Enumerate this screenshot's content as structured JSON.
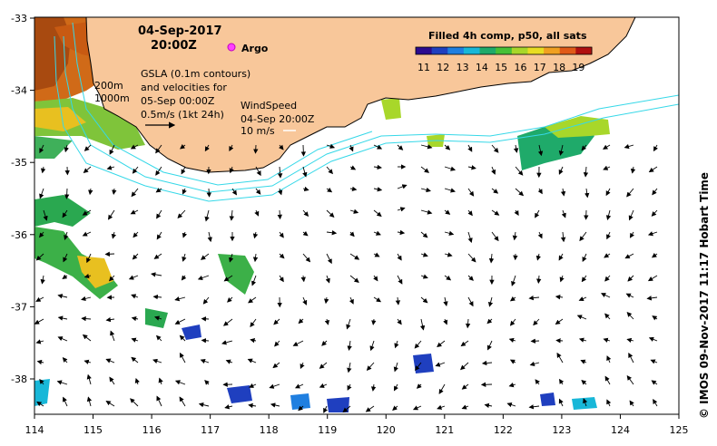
{
  "map": {
    "date_line": "04-Sep-2017",
    "time_line": "20:00Z",
    "argo_label": "Argo",
    "depth_200": "200m",
    "depth_1000": "1000m",
    "gsla_lines": [
      "GSLA (0.1m contours)",
      "and velocities for",
      "05-Sep 00:00Z",
      "0.5m/s (1kt 24h)"
    ],
    "wind_lines": [
      "WindSpeed",
      "04-Sep 20:00Z",
      "10 m/s"
    ],
    "credit": "© IMOS 09-Nov-2017 11:17 Hobart Time"
  },
  "colorbar": {
    "title": "Filled 4h comp, p50, all sats",
    "ticks": [
      "11",
      "12",
      "13",
      "14",
      "15",
      "16",
      "17",
      "18",
      "19"
    ],
    "colors": [
      "#2b0b8f",
      "#1f3fbf",
      "#1f7fe0",
      "#18b7d8",
      "#1faa6a",
      "#47c037",
      "#a8d72a",
      "#e8dd22",
      "#f0a020",
      "#e05a18",
      "#b01010"
    ]
  },
  "axes": {
    "x_ticks": [
      "114",
      "115",
      "116",
      "117",
      "118",
      "119",
      "120",
      "121",
      "122",
      "123",
      "124",
      "125"
    ],
    "y_ticks": [
      "-33",
      "-34",
      "-35",
      "-36",
      "-37",
      "-38"
    ]
  }
}
